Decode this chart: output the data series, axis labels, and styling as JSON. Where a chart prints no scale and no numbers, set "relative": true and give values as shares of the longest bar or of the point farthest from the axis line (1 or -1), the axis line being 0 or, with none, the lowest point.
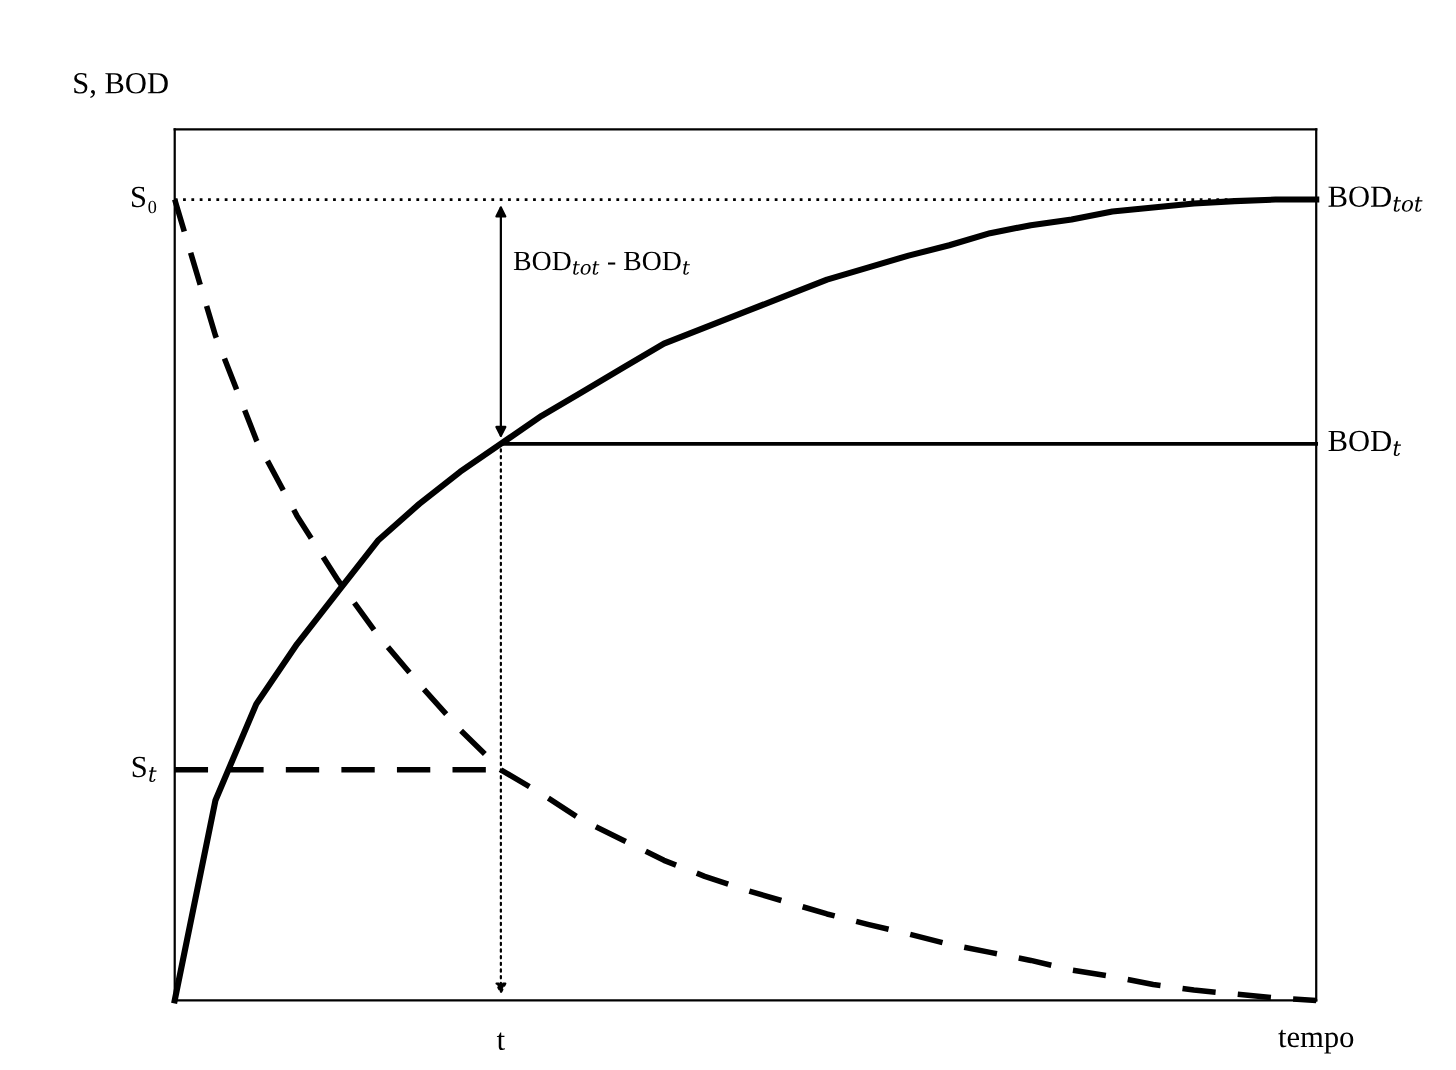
{
  "chart_data": {
    "type": "line",
    "relative": true,
    "ylabel": "S, BOD",
    "xlabel": "tempo",
    "categories": [
      null,
      null,
      null,
      null,
      null,
      null,
      null,
      null,
      null,
      null,
      null,
      null,
      null,
      null,
      null,
      null,
      null,
      null,
      null,
      null,
      null,
      null,
      null,
      null,
      null,
      null,
      null,
      null,
      null
    ],
    "series": [
      {
        "color": "#000000",
        "line_style": "solid",
        "values": [
          0,
          0.25,
          0.37,
          0.445,
          0.51,
          0.575,
          0.62,
          0.66,
          0.695,
          0.73,
          0.76,
          0.79,
          0.82,
          0.84,
          0.86,
          0.88,
          0.9,
          0.915,
          0.93,
          0.943,
          0.958,
          0.968,
          0.975,
          0.985,
          0.99,
          0.995,
          0.998,
          1,
          1
        ]
      },
      {
        "color": "#000000",
        "line_style": "dashed",
        "values": [
          1,
          0.83,
          0.7,
          0.605,
          0.525,
          0.455,
          0.395,
          0.338,
          0.288,
          0.258,
          0.225,
          0.2,
          0.175,
          0.155,
          0.138,
          0.123,
          0.108,
          0.095,
          0.083,
          0.07,
          0.06,
          0.05,
          0.038,
          0.03,
          0.02,
          0.013,
          0.008,
          0.003,
          0
        ]
      },
      {
        "name": "BOD$_{tot}$",
        "color": "#000000",
        "line_style": "dotted",
        "values": [
          1,
          1,
          1,
          1,
          1,
          1,
          1,
          1,
          1,
          1,
          1,
          1,
          1,
          1,
          1,
          1,
          1,
          1,
          1,
          1,
          1,
          1,
          1,
          1,
          1,
          1,
          1,
          1,
          1
        ]
      },
      {
        "name": "BOD$_{t}$",
        "color": "#000000",
        "line_style": "solid",
        "values": [
          null,
          null,
          null,
          null,
          null,
          null,
          null,
          null,
          0.695,
          0.695,
          0.695,
          0.695,
          0.695,
          0.695,
          0.695,
          0.695,
          0.695,
          0.695,
          0.695,
          0.695,
          0.695,
          0.695,
          0.695,
          0.695,
          0.695,
          0.695,
          0.695,
          0.695,
          0.695
        ]
      },
      {
        "color": "#000000",
        "line_style": "dashed",
        "values": [
          0.288,
          0.288,
          0.288,
          0.288,
          0.288,
          0.288,
          0.288,
          0.288,
          0.288,
          null,
          null,
          null,
          null,
          null,
          null,
          null,
          null,
          null,
          null,
          null,
          null,
          null,
          null,
          null,
          null,
          null,
          null,
          null,
          null
        ]
      }
    ],
    "annotations": [
      "S₀",
      "S$_{t}$",
      "BOD$_{tot}$ - BOD$_{t}$",
      "t"
    ]
  }
}
